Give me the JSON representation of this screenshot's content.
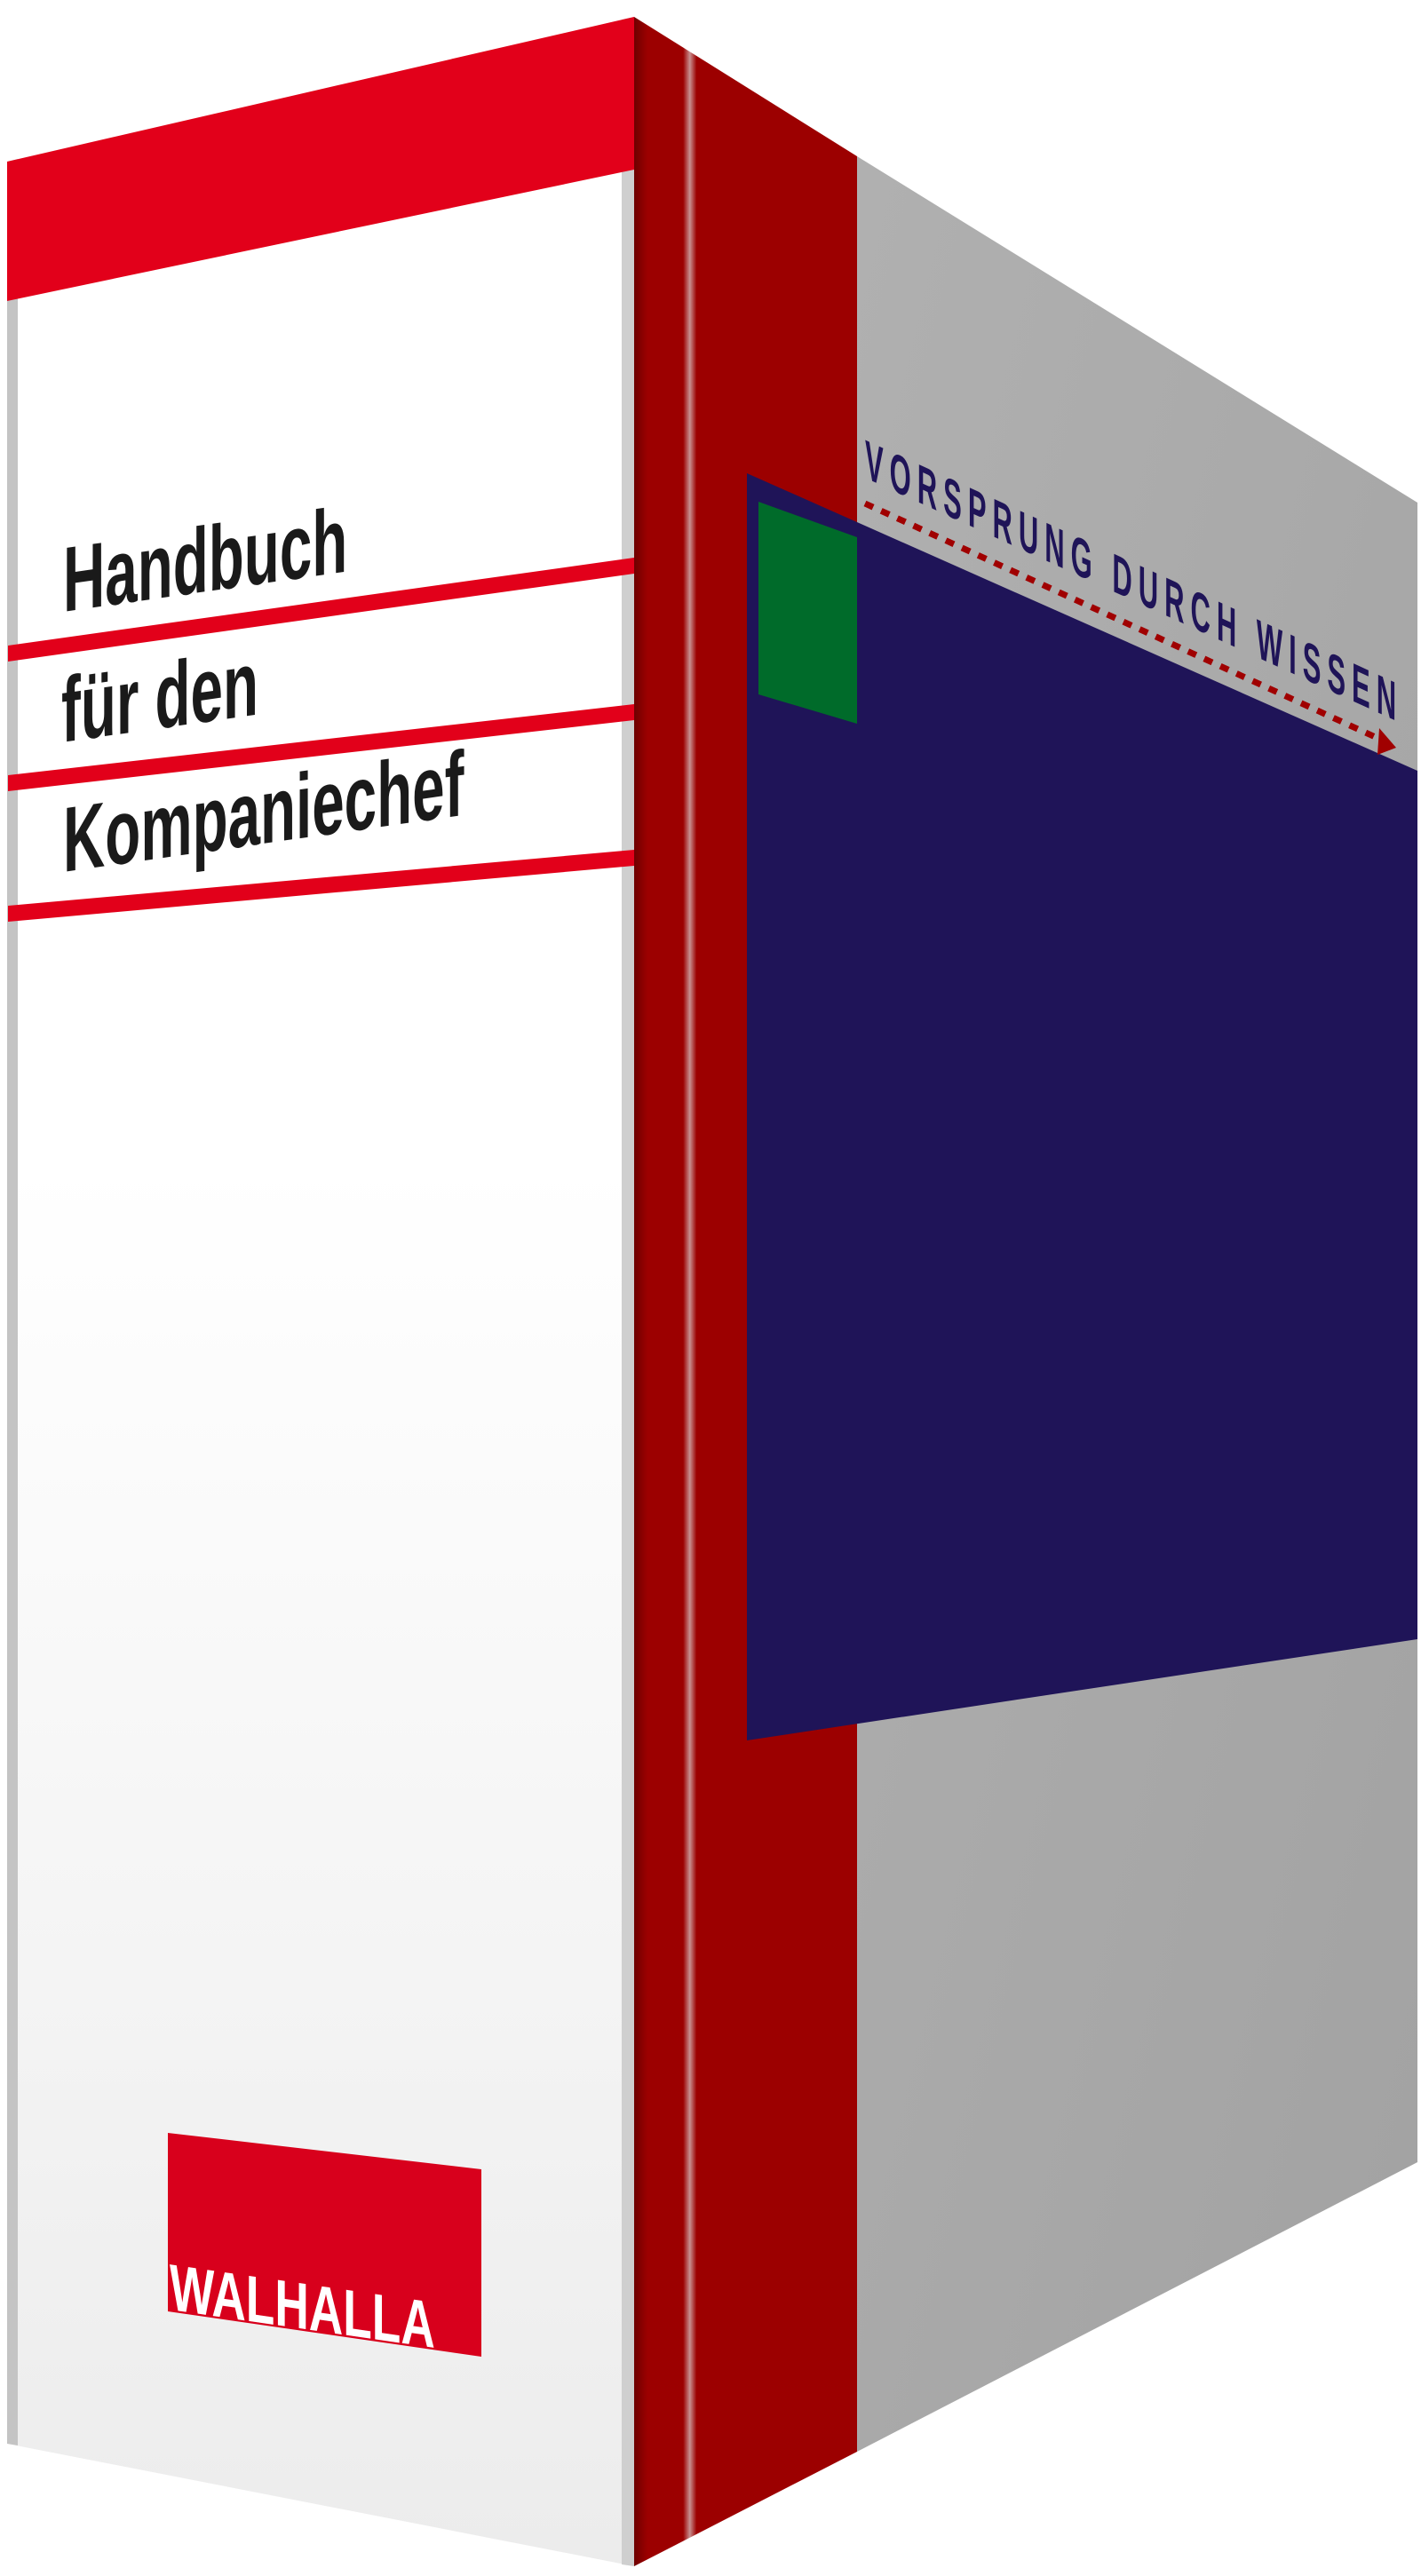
{
  "cover": {
    "title_lines": [
      "Handbuch",
      "für den",
      "Kompaniechef"
    ],
    "publisher_logo": "WALHALLA"
  },
  "side": {
    "tagline": "VORSPRUNG DURCH WISSEN"
  },
  "colors": {
    "brand_red": "#e2001a",
    "spine_red": "#9c0000",
    "side_grey": "#aaaaaa",
    "panel_blue": "#1f1458",
    "accent_green": "#006b2a",
    "title_text": "#1a1a1a"
  }
}
